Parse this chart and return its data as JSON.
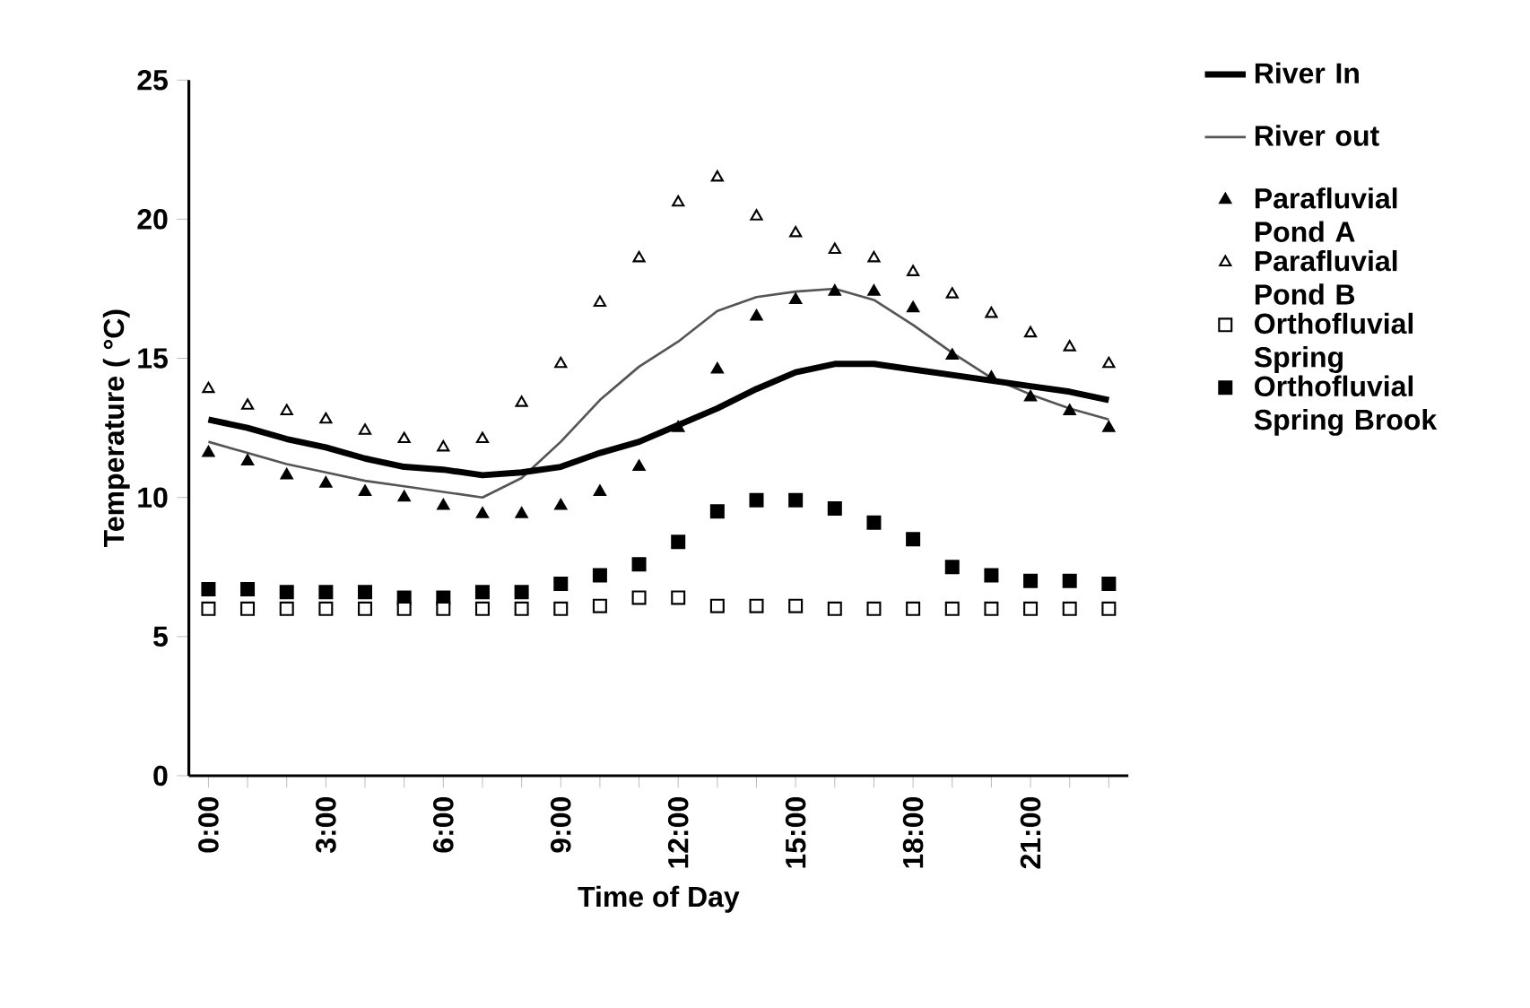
{
  "chart_data": {
    "type": "scatter",
    "xlabel": "Time of Day",
    "ylabel": "Temperature ( °C)",
    "categories": [
      "0:00",
      null,
      null,
      "3:00",
      null,
      null,
      "6:00",
      null,
      null,
      "9:00",
      null,
      null,
      "12:00",
      null,
      null,
      "15:00",
      null,
      null,
      "18:00",
      null,
      null,
      "21:00",
      null,
      null
    ],
    "ylim": [
      0,
      25
    ],
    "yticks": [
      0,
      5,
      10,
      15,
      20,
      25
    ],
    "grid": false,
    "legend": "right",
    "series": [
      {
        "name": "River In",
        "type": "line",
        "marker": "none",
        "color": "#000000",
        "values": [
          12.8,
          12.5,
          12.1,
          11.8,
          11.4,
          11.1,
          11.0,
          10.8,
          10.9,
          11.1,
          11.6,
          12.0,
          12.6,
          13.2,
          13.9,
          14.5,
          14.8,
          14.8,
          14.6,
          14.4,
          14.2,
          14.0,
          13.8,
          13.5
        ]
      },
      {
        "name": "River out",
        "type": "line",
        "marker": "none",
        "color": "#555555",
        "values": [
          12.0,
          11.6,
          11.2,
          10.9,
          10.6,
          10.4,
          10.2,
          10.0,
          10.7,
          12.0,
          13.5,
          14.7,
          15.6,
          16.7,
          17.2,
          17.4,
          17.5,
          17.1,
          16.2,
          15.2,
          14.3,
          13.7,
          13.2,
          12.8
        ]
      },
      {
        "name": "Parafluvial Pond A",
        "marker": "triangle",
        "color": "#000000",
        "values": [
          11.6,
          11.3,
          10.8,
          10.5,
          10.2,
          10.0,
          9.7,
          9.4,
          9.4,
          9.7,
          10.2,
          11.1,
          12.5,
          14.6,
          16.5,
          17.1,
          17.4,
          17.4,
          16.8,
          15.1,
          14.3,
          13.6,
          13.1,
          12.5
        ]
      },
      {
        "name": "Parafluvial Pond B",
        "marker": "triangle",
        "color": "#ffffff",
        "values": [
          13.9,
          13.3,
          13.1,
          12.8,
          12.4,
          12.1,
          11.8,
          12.1,
          13.4,
          14.8,
          17.0,
          18.6,
          20.6,
          21.5,
          20.1,
          19.5,
          18.9,
          18.6,
          18.1,
          17.3,
          16.6,
          15.9,
          15.4,
          14.8
        ]
      },
      {
        "name": "Orthofluvial Spring",
        "marker": "square",
        "color": "#ffffff",
        "values": [
          6.0,
          6.0,
          6.0,
          6.0,
          6.0,
          6.0,
          6.0,
          6.0,
          6.0,
          6.0,
          6.1,
          6.4,
          6.4,
          6.1,
          6.1,
          6.1,
          6.0,
          6.0,
          6.0,
          6.0,
          6.0,
          6.0,
          6.0,
          6.0
        ]
      },
      {
        "name": "Orthofluvial Spring Brook",
        "marker": "square",
        "color": "#000000",
        "values": [
          6.7,
          6.7,
          6.6,
          6.6,
          6.6,
          6.4,
          6.4,
          6.6,
          6.6,
          6.9,
          7.2,
          7.6,
          8.4,
          9.5,
          9.9,
          9.9,
          9.6,
          9.1,
          8.5,
          7.5,
          7.2,
          7.0,
          7.0,
          6.9
        ]
      }
    ]
  }
}
